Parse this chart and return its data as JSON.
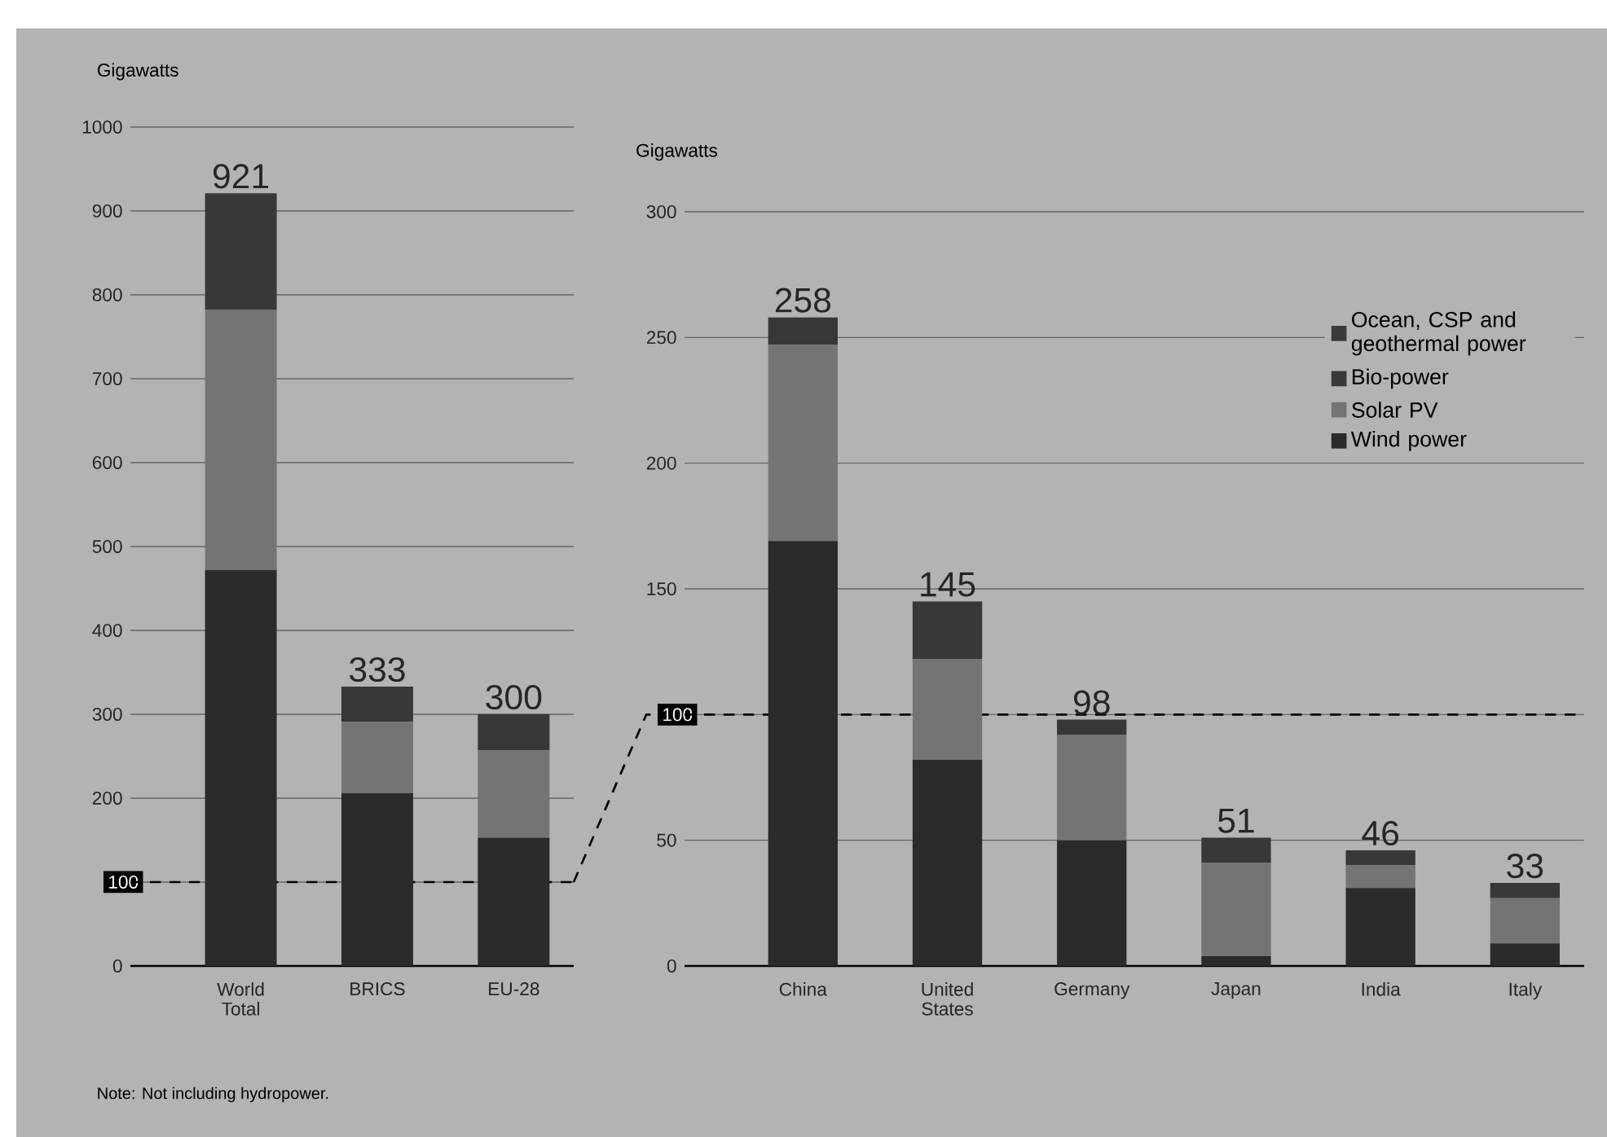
{
  "chart_data": [
    {
      "type": "bar",
      "stacked": true,
      "categories": [
        "World Total",
        "BRICS",
        "EU-28"
      ],
      "ylabel": "Gigawatts",
      "series": [
        {
          "color": "#2b2b2b",
          "values": [
            472,
            206,
            153
          ]
        },
        {
          "color": "#747474",
          "values": [
            310,
            85,
            104
          ]
        },
        {
          "color": "#383838",
          "values": [
            139,
            42,
            43
          ]
        }
      ],
      "totals": [
        "921",
        "333",
        "300"
      ],
      "ylim": [
        0,
        1000
      ],
      "yticks": [
        0,
        {
          "value": 100,
          "label": null
        },
        200,
        300,
        400,
        500,
        600,
        700,
        800,
        900,
        1000
      ],
      "grid": "y",
      "ref_lines": [
        {
          "axis": "y",
          "value": 100,
          "label": "100",
          "line_style": "dashed"
        }
      ],
      "annotations": [
        "Note: Not including hydropower."
      ]
    },
    {
      "type": "bar",
      "stacked": true,
      "categories": [
        "China",
        "United States",
        "Germany",
        "Japan",
        "India",
        "Italy"
      ],
      "ylabel": "Gigawatts",
      "series": [
        {
          "name": "Wind power",
          "color": "#2b2b2b",
          "values": [
            169,
            82,
            50,
            4,
            31,
            9
          ]
        },
        {
          "name": "Solar PV",
          "color": "#747474",
          "values": [
            78,
            40,
            42,
            37,
            9,
            18
          ]
        },
        {
          "name": "Bio-power",
          "color": "#383838",
          "values": [
            11,
            23,
            6,
            10,
            6,
            6
          ]
        },
        {
          "name": "Ocean, CSP and geothermal power",
          "color": "#3a3a3a",
          "values": [
            null,
            null,
            null,
            null,
            null,
            null
          ]
        }
      ],
      "totals": [
        "258",
        "145",
        "98",
        "51",
        "46",
        "33"
      ],
      "ylim": [
        0,
        300
      ],
      "yticks": [
        0,
        50,
        {
          "value": 100,
          "label": null
        },
        150,
        200,
        250,
        300
      ],
      "grid": "y",
      "legend": "top right",
      "ref_lines": [
        {
          "axis": "y",
          "value": 100,
          "label": "100",
          "line_style": "dashed"
        }
      ]
    }
  ]
}
